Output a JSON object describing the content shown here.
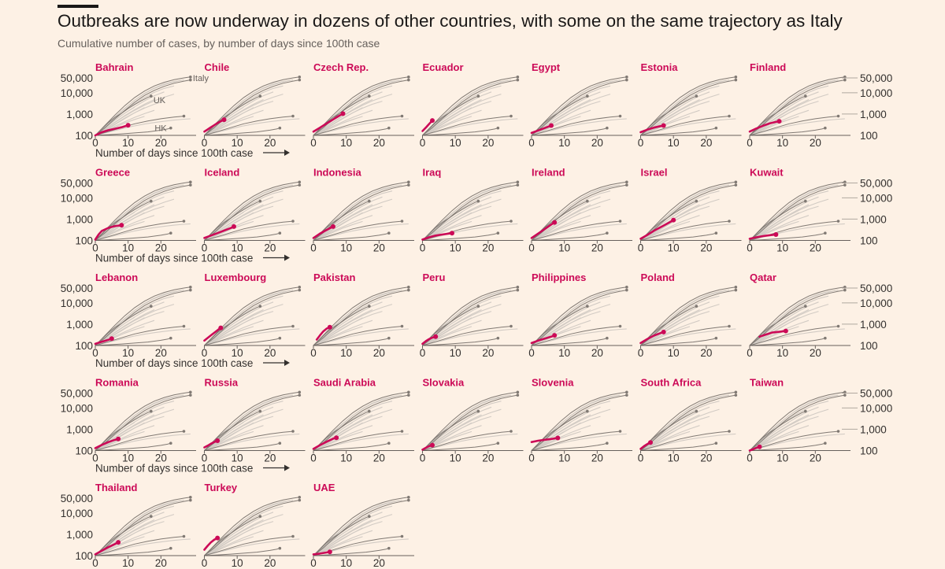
{
  "title": "Outbreaks are now underway in dozens of other countries, with some on the same trajectory as Italy",
  "subtitle": "Cumulative number of cases, by number of days since 100th case",
  "colors": {
    "background": "#fdf1e5",
    "highlight": "#cc0a57",
    "reference": "#807973",
    "other": "#d2cbc4",
    "axis": "#66605c",
    "text": "#33302e"
  },
  "chart_data": {
    "type": "line",
    "layout": "small-multiples",
    "x_label": "Number of days since 100th case",
    "x_ticks": [
      "0",
      "10",
      "20"
    ],
    "y_ticks": [
      "100",
      "1,000",
      "10,000",
      "50,000"
    ],
    "y_scale": "log",
    "xlim": [
      0,
      30
    ],
    "ylim": [
      100,
      70000
    ],
    "reference_labels": [
      "Italy",
      "UK",
      "HK"
    ],
    "reference_series": [
      {
        "name": "Italy",
        "x": [
          0,
          3,
          6,
          9,
          12,
          15,
          18,
          21,
          24,
          27,
          29
        ],
        "y": [
          100,
          300,
          900,
          2500,
          6000,
          12000,
          21000,
          31000,
          41000,
          50000,
          55000
        ]
      },
      {
        "name": "UK",
        "x": [
          0,
          2,
          4,
          6,
          8,
          10,
          12,
          14,
          16,
          17
        ],
        "y": [
          100,
          200,
          400,
          700,
          1100,
          1800,
          2800,
          4200,
          6100,
          7000
        ]
      },
      {
        "name": "HK",
        "x": [
          0,
          4,
          8,
          12,
          16,
          20,
          22,
          23
        ],
        "y": [
          100,
          108,
          118,
          130,
          145,
          175,
          200,
          220
        ]
      },
      {
        "name": "",
        "x": [
          0,
          3,
          6,
          9,
          12,
          15,
          18,
          21,
          24,
          27,
          29
        ],
        "y": [
          100,
          230,
          600,
          1500,
          3600,
          7500,
          13000,
          20000,
          28000,
          35000,
          40000
        ]
      },
      {
        "name": "",
        "x": [
          0,
          4,
          8,
          12,
          16,
          20,
          24,
          27
        ],
        "y": [
          100,
          150,
          230,
          350,
          470,
          600,
          720,
          800
        ]
      }
    ],
    "background_series": [
      {
        "x": [
          0,
          3,
          6,
          9,
          12,
          15,
          18,
          21,
          24,
          26
        ],
        "y": [
          100,
          260,
          700,
          1800,
          4500,
          9000,
          16000,
          24000,
          32000,
          38000
        ]
      },
      {
        "x": [
          0,
          3,
          6,
          9,
          12,
          15,
          18,
          21,
          24
        ],
        "y": [
          100,
          240,
          600,
          1400,
          3100,
          6000,
          10500,
          16000,
          21000
        ]
      },
      {
        "x": [
          0,
          3,
          6,
          9,
          12,
          15,
          18,
          21
        ],
        "y": [
          100,
          220,
          520,
          1100,
          2200,
          4200,
          7300,
          11000
        ]
      },
      {
        "x": [
          0,
          3,
          6,
          9,
          12,
          15,
          18
        ],
        "y": [
          100,
          200,
          420,
          850,
          1600,
          2900,
          4800
        ]
      },
      {
        "x": [
          0,
          3,
          6,
          9,
          12,
          15,
          18,
          21
        ],
        "y": [
          100,
          180,
          340,
          650,
          1150,
          1900,
          2900,
          4000
        ]
      },
      {
        "x": [
          0,
          3,
          6,
          9,
          12,
          15
        ],
        "y": [
          100,
          170,
          320,
          620,
          1150,
          2000
        ]
      },
      {
        "x": [
          0,
          3,
          6,
          9,
          12,
          15,
          18
        ],
        "y": [
          100,
          160,
          270,
          440,
          700,
          1050,
          1500
        ]
      },
      {
        "x": [
          0,
          3,
          6,
          9,
          12,
          15
        ],
        "y": [
          100,
          150,
          240,
          380,
          560,
          780
        ]
      },
      {
        "x": [
          0,
          3,
          6,
          9,
          12,
          15,
          18,
          21,
          24,
          27,
          29
        ],
        "y": [
          100,
          130,
          170,
          220,
          280,
          340,
          400,
          460,
          520,
          570,
          600
        ]
      },
      {
        "x": [
          0,
          3,
          6,
          9,
          12,
          15,
          18,
          21,
          24
        ],
        "y": [
          100,
          200,
          400,
          800,
          1500,
          2600,
          4200,
          6200,
          8600
        ]
      },
      {
        "x": [
          0,
          3,
          6,
          9,
          12
        ],
        "y": [
          100,
          230,
          520,
          1100,
          2100
        ]
      },
      {
        "x": [
          0,
          3,
          6,
          9,
          12,
          15,
          18,
          21,
          24,
          27
        ],
        "y": [
          100,
          280,
          750,
          1900,
          4500,
          9500,
          17000,
          26000,
          34000,
          40000
        ]
      }
    ],
    "countries": [
      {
        "name": "Bahrain",
        "x": [
          0,
          2,
          4,
          6,
          8,
          10
        ],
        "y": [
          100,
          140,
          175,
          205,
          240,
          300
        ]
      },
      {
        "name": "Chile",
        "x": [
          0,
          1,
          2,
          3,
          4,
          5,
          6
        ],
        "y": [
          150,
          190,
          240,
          300,
          380,
          460,
          540
        ]
      },
      {
        "name": "Czech Rep.",
        "x": [
          0,
          2,
          4,
          6,
          8,
          9
        ],
        "y": [
          150,
          230,
          360,
          560,
          850,
          1050
        ]
      },
      {
        "name": "Ecuador",
        "x": [
          0,
          1,
          2,
          3
        ],
        "y": [
          160,
          230,
          340,
          500
        ]
      },
      {
        "name": "Egypt",
        "x": [
          0,
          2,
          4,
          6
        ],
        "y": [
          130,
          170,
          220,
          290
        ]
      },
      {
        "name": "Estonia",
        "x": [
          0,
          2,
          4,
          6,
          7
        ],
        "y": [
          140,
          185,
          230,
          270,
          290
        ]
      },
      {
        "name": "Finland",
        "x": [
          0,
          2,
          4,
          6,
          8,
          9
        ],
        "y": [
          150,
          210,
          280,
          360,
          430,
          460
        ]
      },
      {
        "name": "Greece",
        "x": [
          0,
          1,
          2,
          4,
          6,
          8
        ],
        "y": [
          110,
          190,
          280,
          390,
          470,
          520
        ]
      },
      {
        "name": "Iceland",
        "x": [
          0,
          2,
          4,
          6,
          8,
          9
        ],
        "y": [
          130,
          170,
          220,
          290,
          380,
          450
        ]
      },
      {
        "name": "Indonesia",
        "x": [
          0,
          2,
          4,
          6
        ],
        "y": [
          130,
          210,
          310,
          450
        ]
      },
      {
        "name": "Iraq",
        "x": [
          0,
          2,
          4,
          6,
          8,
          9
        ],
        "y": [
          110,
          140,
          170,
          190,
          210,
          220
        ]
      },
      {
        "name": "Ireland",
        "x": [
          0,
          2,
          4,
          6,
          7
        ],
        "y": [
          130,
          210,
          340,
          560,
          700
        ]
      },
      {
        "name": "Israel",
        "x": [
          0,
          2,
          4,
          6,
          8,
          10
        ],
        "y": [
          120,
          180,
          280,
          410,
          600,
          900
        ]
      },
      {
        "name": "Kuwait",
        "x": [
          0,
          2,
          4,
          6,
          8
        ],
        "y": [
          120,
          140,
          160,
          175,
          190
        ]
      },
      {
        "name": "Lebanon",
        "x": [
          0,
          2,
          4,
          5
        ],
        "y": [
          120,
          150,
          185,
          210
        ]
      },
      {
        "name": "Luxembourg",
        "x": [
          0,
          2,
          4,
          5
        ],
        "y": [
          170,
          300,
          520,
          670
        ]
      },
      {
        "name": "Pakistan",
        "x": [
          1,
          2,
          3,
          4,
          5
        ],
        "y": [
          190,
          300,
          460,
          620,
          720
        ]
      },
      {
        "name": "Peru",
        "x": [
          0,
          1,
          2,
          3,
          4
        ],
        "y": [
          120,
          160,
          200,
          235,
          260
        ]
      },
      {
        "name": "Philippines",
        "x": [
          0,
          2,
          4,
          6,
          7
        ],
        "y": [
          130,
          170,
          210,
          260,
          300
        ]
      },
      {
        "name": "Poland",
        "x": [
          0,
          2,
          4,
          6,
          7
        ],
        "y": [
          130,
          200,
          290,
          380,
          430
        ]
      },
      {
        "name": "Qatar",
        "x": [
          3,
          5,
          7,
          9,
          11
        ],
        "y": [
          260,
          330,
          410,
          440,
          480
        ]
      },
      {
        "name": "Romania",
        "x": [
          0,
          2,
          4,
          6,
          7
        ],
        "y": [
          130,
          185,
          250,
          320,
          350
        ]
      },
      {
        "name": "Russia",
        "x": [
          0,
          1,
          2,
          3,
          4
        ],
        "y": [
          140,
          170,
          210,
          250,
          290
        ]
      },
      {
        "name": "Saudi Arabia",
        "x": [
          0,
          2,
          4,
          6,
          7
        ],
        "y": [
          120,
          180,
          260,
          360,
          400
        ]
      },
      {
        "name": "Slovakia",
        "x": [
          0,
          1,
          2,
          3
        ],
        "y": [
          110,
          135,
          160,
          180
        ]
      },
      {
        "name": "Slovenia",
        "x": [
          0,
          2,
          4,
          6,
          8
        ],
        "y": [
          250,
          290,
          320,
          350,
          390
        ]
      },
      {
        "name": "South Africa",
        "x": [
          0,
          1,
          2,
          3
        ],
        "y": [
          120,
          160,
          200,
          240
        ]
      },
      {
        "name": "Taiwan",
        "x": [
          0,
          1,
          2,
          3
        ],
        "y": [
          100,
          115,
          135,
          150
        ]
      },
      {
        "name": "Thailand",
        "x": [
          0,
          2,
          4,
          6,
          7
        ],
        "y": [
          115,
          170,
          250,
          350,
          420
        ]
      },
      {
        "name": "Turkey",
        "x": [
          0,
          1,
          2,
          3,
          4
        ],
        "y": [
          190,
          290,
          420,
          560,
          670
        ]
      },
      {
        "name": "UAE",
        "x": [
          0,
          2,
          4,
          5
        ],
        "y": [
          115,
          125,
          140,
          150
        ]
      }
    ]
  }
}
